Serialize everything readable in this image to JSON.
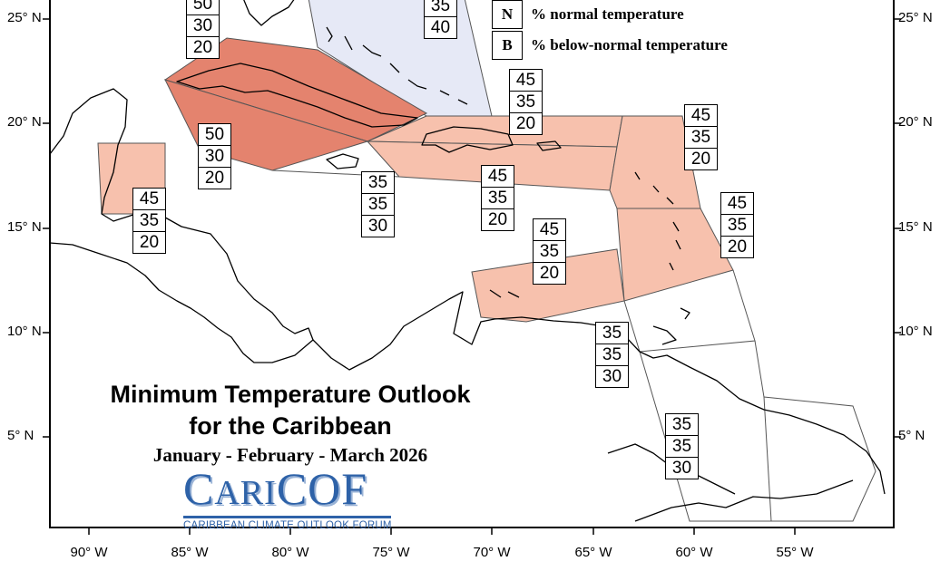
{
  "map": {
    "title_line1": "Minimum Temperature Outlook",
    "title_line2": "for the Caribbean",
    "season": "January - February - March 2026",
    "logo": {
      "name_cap": "C",
      "name_small": "ARI",
      "name_end": "COF",
      "subtitle": "CARIBBEAN CLIMATE OUTLOOK FORUM"
    },
    "colors": {
      "above_50": "#e4836e",
      "above_45": "#f7c1ad",
      "normal_favoured": "#e6e9f6",
      "land_outline": "#000000",
      "logo_blue": "#2e62a8"
    },
    "legend": [
      {
        "key": "N",
        "text": "% normal temperature"
      },
      {
        "key": "B",
        "text": "% below-normal temperature"
      }
    ],
    "latitude_labels": [
      "25° N",
      "20° N",
      "15° N",
      "10° N",
      "5° N"
    ],
    "longitude_labels": [
      "90° W",
      "85° W",
      "80° W",
      "75° W",
      "70° W",
      "65° W",
      "60° W",
      "55° W"
    ]
  },
  "zones": [
    {
      "region": "Cuba / Bahamas west",
      "values": [
        "50",
        "30",
        "20"
      ],
      "fill": "above_50"
    },
    {
      "region": "Bahamas east",
      "values": [
        "35",
        "40"
      ],
      "fill": "normal_favoured"
    },
    {
      "region": "Cuba south / Cayman",
      "values": [
        "50",
        "30",
        "20"
      ],
      "fill": "above_50"
    },
    {
      "region": "Belize",
      "values": [
        "45",
        "35",
        "20"
      ],
      "fill": "above_45"
    },
    {
      "region": "Jamaica",
      "values": [
        "35",
        "35",
        "30"
      ],
      "fill": "none"
    },
    {
      "region": "Hispaniola north / Turks and Caicos",
      "values": [
        "45",
        "35",
        "20"
      ],
      "fill": "above_45"
    },
    {
      "region": "Hispaniola / Puerto Rico",
      "values": [
        "45",
        "35",
        "20"
      ],
      "fill": "above_45"
    },
    {
      "region": "Leeward Islands",
      "values": [
        "45",
        "35",
        "20"
      ],
      "fill": "above_45"
    },
    {
      "region": "Windward Islands",
      "values": [
        "45",
        "35",
        "20"
      ],
      "fill": "above_45"
    },
    {
      "region": "ABC Islands",
      "values": [
        "45",
        "35",
        "20"
      ],
      "fill": "above_45"
    },
    {
      "region": "Trinidad and Tobago",
      "values": [
        "35",
        "35",
        "30"
      ],
      "fill": "none"
    },
    {
      "region": "Guianas",
      "values": [
        "35",
        "35",
        "30"
      ],
      "fill": "none"
    }
  ]
}
